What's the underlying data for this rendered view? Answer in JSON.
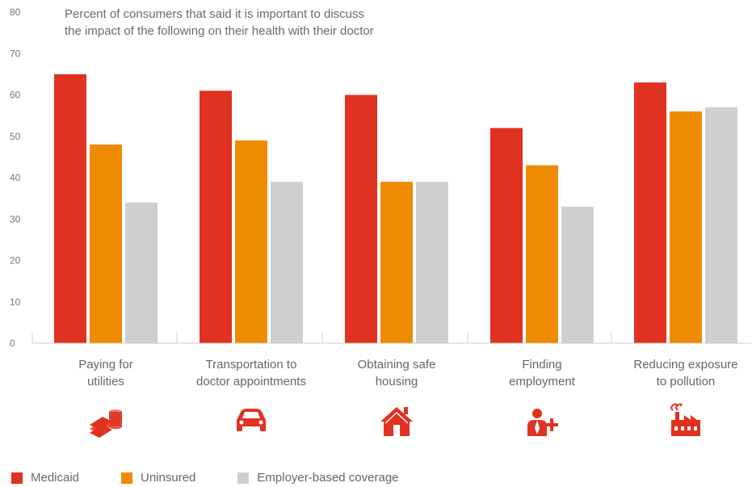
{
  "chart_data": {
    "type": "bar",
    "title_lines": [
      "Percent of consumers that said it is important to discuss",
      "the impact of the following on their health with their doctor"
    ],
    "categories": [
      [
        "Paying for",
        "utilities"
      ],
      [
        "Transportation to",
        "doctor appointments"
      ],
      [
        "Obtaining safe",
        "housing"
      ],
      [
        "Finding",
        "employment"
      ],
      [
        "Reducing exposure",
        "to pollution"
      ]
    ],
    "category_icons": [
      "money-stack-icon",
      "car-icon",
      "house-icon",
      "person-plus-icon",
      "factory-icon"
    ],
    "series": [
      {
        "name": "Medicaid",
        "color": "#e03221",
        "values": [
          65,
          61,
          60,
          52,
          63
        ]
      },
      {
        "name": "Uninsured",
        "color": "#ef8b00",
        "values": [
          48,
          49,
          39,
          43,
          56
        ]
      },
      {
        "name": "Employer-based coverage",
        "color": "#cfcfd1",
        "values": [
          34,
          39,
          39,
          33,
          57
        ]
      }
    ],
    "ylim": [
      0,
      80
    ],
    "yticks": [
      0,
      10,
      20,
      30,
      40,
      50,
      60,
      70,
      80
    ],
    "grid": false,
    "legend_position": "bottom-left",
    "icon_color": "#e03221"
  }
}
